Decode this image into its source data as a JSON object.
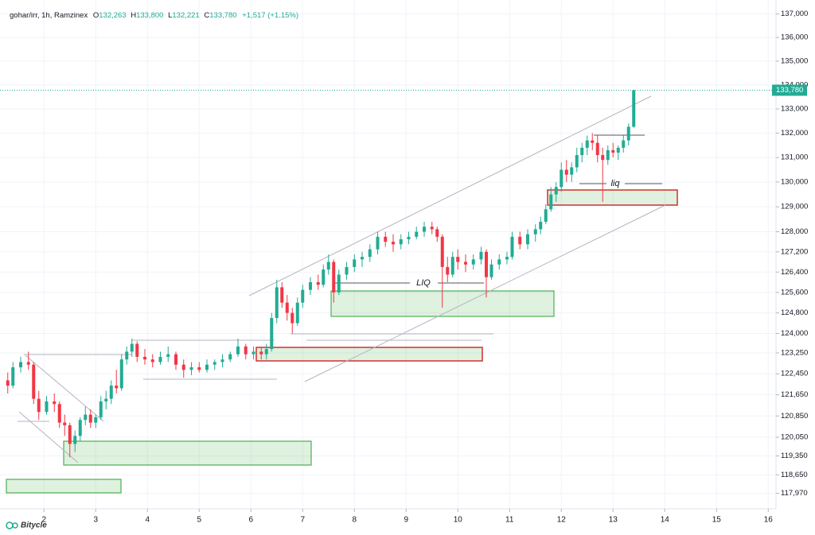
{
  "chart_data": {
    "type": "candlestick",
    "header": {
      "symbol": "gohar/irr, 1h, Ramzinex",
      "open_key": "O",
      "open": "132,263",
      "high_key": "H",
      "high": "133,800",
      "low_key": "L",
      "low": "132,221",
      "close_key": "C",
      "close": "133,780",
      "change": "+1,517 (+1.15%)"
    },
    "brand": "Bitycle",
    "annotations": [
      "LIQ",
      "liq"
    ],
    "last_price_label": "133,780",
    "log_scale": true,
    "grid": true,
    "up_color": "#22ab94",
    "down_color": "#f23645",
    "xlim": [
      1.15,
      16.15
    ],
    "xticks": [
      2,
      3,
      4,
      5,
      6,
      7,
      8,
      9,
      10,
      11,
      12,
      13,
      14,
      15,
      16
    ],
    "ylim": [
      117400,
      137600
    ],
    "yticks": [
      {
        "value": 137000,
        "label": "137,000"
      },
      {
        "value": 136000,
        "label": "136,000"
      },
      {
        "value": 135000,
        "label": "135,000"
      },
      {
        "value": 134000,
        "label": "134,000"
      },
      {
        "value": 133000,
        "label": "133,000"
      },
      {
        "value": 132000,
        "label": "132,000"
      },
      {
        "value": 131000,
        "label": "131,000"
      },
      {
        "value": 130000,
        "label": "130,000"
      },
      {
        "value": 129000,
        "label": "129,000"
      },
      {
        "value": 128000,
        "label": "128,000"
      },
      {
        "value": 127200,
        "label": "127,200"
      },
      {
        "value": 126400,
        "label": "126,400"
      },
      {
        "value": 125600,
        "label": "125,600"
      },
      {
        "value": 124800,
        "label": "124,800"
      },
      {
        "value": 124000,
        "label": "124,000"
      },
      {
        "value": 123250,
        "label": "123,250"
      },
      {
        "value": 122450,
        "label": "122,450"
      },
      {
        "value": 121650,
        "label": "121,650"
      },
      {
        "value": 120850,
        "label": "120,850"
      },
      {
        "value": 120050,
        "label": "120,050"
      },
      {
        "value": 119350,
        "label": "119,350"
      },
      {
        "value": 118650,
        "label": "118,650"
      },
      {
        "value": 117970,
        "label": "117,970"
      }
    ],
    "x": [
      1.3,
      1.4,
      1.55,
      1.7,
      1.8,
      1.9,
      2.05,
      2.2,
      2.3,
      2.4,
      2.5,
      2.6,
      2.7,
      2.8,
      2.9,
      3.0,
      3.1,
      3.2,
      3.3,
      3.4,
      3.5,
      3.6,
      3.7,
      3.8,
      3.95,
      4.1,
      4.25,
      4.4,
      4.55,
      4.7,
      4.85,
      5.0,
      5.15,
      5.3,
      5.45,
      5.6,
      5.75,
      5.9,
      6.05,
      6.2,
      6.3,
      6.4,
      6.5,
      6.6,
      6.7,
      6.8,
      6.9,
      7.0,
      7.15,
      7.3,
      7.4,
      7.5,
      7.6,
      7.7,
      7.85,
      8.0,
      8.15,
      8.3,
      8.45,
      8.6,
      8.75,
      8.9,
      9.05,
      9.2,
      9.35,
      9.5,
      9.6,
      9.7,
      9.8,
      9.9,
      10.0,
      10.15,
      10.3,
      10.45,
      10.55,
      10.65,
      10.8,
      10.95,
      11.05,
      11.2,
      11.35,
      11.5,
      11.6,
      11.7,
      11.8,
      11.9,
      12.0,
      12.1,
      12.2,
      12.3,
      12.4,
      12.5,
      12.6,
      12.7,
      12.8,
      12.9,
      13.0,
      13.1,
      13.2,
      13.3,
      13.4
    ],
    "open": [
      122200,
      122000,
      122700,
      122900,
      122800,
      121500,
      121000,
      121400,
      121300,
      120600,
      120500,
      119800,
      120100,
      120700,
      120900,
      120600,
      120800,
      121400,
      121500,
      122000,
      121900,
      123000,
      123300,
      123600,
      123100,
      123000,
      122900,
      123100,
      123200,
      122800,
      122600,
      122700,
      122600,
      122800,
      122900,
      123000,
      123200,
      123500,
      123200,
      123300,
      123200,
      123400,
      124600,
      125800,
      125200,
      124800,
      124400,
      125200,
      125700,
      126000,
      125900,
      126500,
      126800,
      125600,
      126300,
      126600,
      126900,
      127000,
      127300,
      127800,
      127600,
      127500,
      127700,
      127800,
      128000,
      128200,
      128100,
      127800,
      126600,
      126300,
      127000,
      126800,
      126700,
      126900,
      127200,
      126200,
      126700,
      126900,
      127000,
      127800,
      127500,
      127900,
      128100,
      128400,
      128900,
      129500,
      129800,
      130500,
      130300,
      130600,
      131100,
      131400,
      131700,
      131600,
      131100,
      130900,
      131300,
      131200,
      131400,
      131700,
      132263
    ],
    "high": [
      122500,
      122900,
      123100,
      123300,
      122900,
      121800,
      121600,
      121700,
      121400,
      120900,
      120600,
      120300,
      120800,
      121200,
      121100,
      120900,
      121600,
      121800,
      122200,
      122600,
      123200,
      123500,
      123800,
      123700,
      123400,
      123200,
      123300,
      123500,
      123300,
      123000,
      122900,
      122900,
      123000,
      123000,
      123200,
      123300,
      123800,
      123600,
      123500,
      123500,
      123600,
      124800,
      126100,
      126000,
      125500,
      125000,
      125400,
      125900,
      126200,
      126300,
      126700,
      127100,
      126900,
      126500,
      126800,
      127100,
      127200,
      127500,
      128000,
      128000,
      127900,
      127900,
      128000,
      128200,
      128400,
      128400,
      128200,
      127900,
      127000,
      127200,
      127300,
      127100,
      127100,
      127400,
      127300,
      126900,
      127100,
      127200,
      128000,
      128000,
      128100,
      128300,
      128600,
      129100,
      129800,
      130000,
      130800,
      130900,
      130800,
      131400,
      131600,
      131900,
      132000,
      131900,
      131400,
      131500,
      131600,
      131500,
      131900,
      132400,
      133800
    ],
    "low": [
      121700,
      121900,
      122500,
      122600,
      121300,
      120700,
      120900,
      121000,
      120400,
      120100,
      119300,
      119500,
      119900,
      120500,
      120400,
      120400,
      120700,
      121100,
      121300,
      121700,
      121800,
      122800,
      123100,
      122900,
      122800,
      122700,
      122800,
      122900,
      122600,
      122300,
      122400,
      122500,
      122500,
      122600,
      122700,
      122900,
      123100,
      123000,
      123000,
      123000,
      123000,
      123300,
      124400,
      125000,
      124500,
      124000,
      124300,
      125000,
      125500,
      125700,
      125800,
      126300,
      125200,
      125500,
      126100,
      126400,
      126600,
      126800,
      127100,
      127400,
      127200,
      127300,
      127500,
      127700,
      127800,
      127900,
      127600,
      125000,
      126000,
      126200,
      126500,
      126400,
      126500,
      126700,
      125400,
      126100,
      126500,
      126700,
      126900,
      127300,
      127300,
      127600,
      127900,
      128300,
      128800,
      129200,
      129600,
      130000,
      130000,
      130400,
      130800,
      131100,
      131300,
      130800,
      129200,
      130700,
      131000,
      130900,
      131200,
      131500,
      132221
    ],
    "close": [
      122000,
      122700,
      122900,
      122800,
      121500,
      121000,
      121400,
      121300,
      120600,
      120500,
      119800,
      120100,
      120700,
      120900,
      120600,
      120800,
      121400,
      121500,
      122000,
      121900,
      123000,
      123300,
      123600,
      123100,
      123000,
      122900,
      123100,
      123200,
      122800,
      122600,
      122700,
      122600,
      122800,
      122900,
      123000,
      123200,
      123500,
      123200,
      123300,
      123200,
      123400,
      124600,
      125800,
      125200,
      124800,
      124400,
      125200,
      125700,
      126000,
      125900,
      126500,
      126800,
      125600,
      126300,
      126600,
      126900,
      127000,
      127300,
      127800,
      127600,
      127500,
      127700,
      127800,
      128000,
      128200,
      128100,
      127800,
      126600,
      126300,
      127000,
      126800,
      126700,
      126900,
      127200,
      126200,
      126700,
      126900,
      127000,
      127800,
      127500,
      127900,
      128100,
      128400,
      128900,
      129500,
      129800,
      130500,
      130300,
      130600,
      131100,
      131400,
      131700,
      131600,
      131100,
      130900,
      131300,
      131200,
      131400,
      131700,
      132263,
      133780
    ]
  }
}
